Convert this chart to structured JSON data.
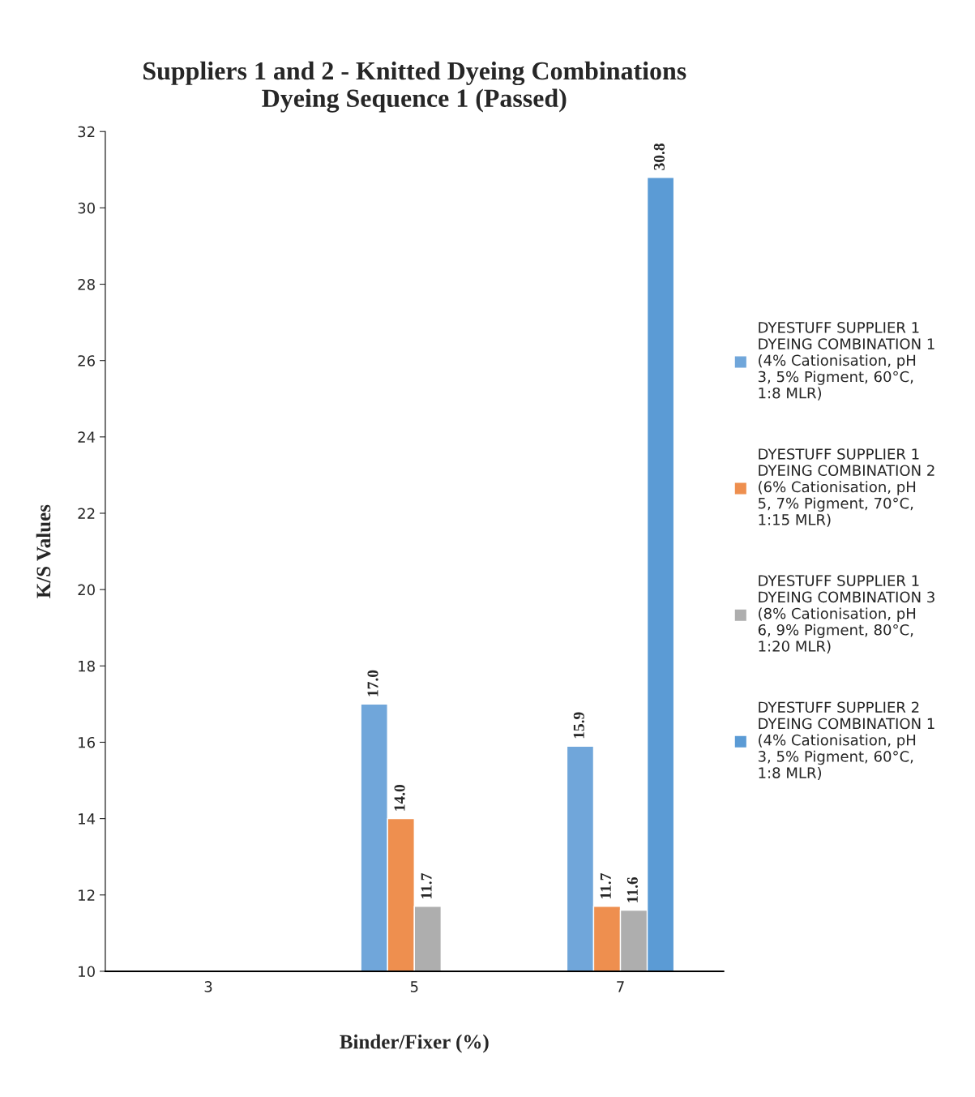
{
  "chart_data": {
    "type": "bar",
    "title": "Suppliers 1 and 2 - Knitted Dyeing Combinations\nDyeing Sequence 1 (Passed)",
    "xlabel": "Binder/Fixer (%)",
    "ylabel": "K/S Values",
    "categories": [
      "3",
      "5",
      "7"
    ],
    "series": [
      {
        "name": "DYESTUFF SUPPLIER 1 DYEING COMBINATION 1 (4% Cationisation, pH 3, 5% Pigment, 60°C, 1:8 MLR)",
        "color": "#70a6da",
        "values": [
          null,
          17.0,
          15.9
        ],
        "value_labels": [
          null,
          "17.0",
          "15.9"
        ]
      },
      {
        "name": "DYESTUFF SUPPLIER 1 DYEING COMBINATION 2 (6% Cationisation, pH 5, 7% Pigment, 70°C, 1:15 MLR)",
        "color": "#ee8f4f",
        "values": [
          null,
          14.0,
          11.7
        ],
        "value_labels": [
          null,
          "14.0",
          "11.7"
        ]
      },
      {
        "name": "DYESTUFF SUPPLIER 1 DYEING COMBINATION 3 (8% Cationisation, pH 6, 9% Pigment, 80°C, 1:20 MLR)",
        "color": "#aeaeae",
        "values": [
          null,
          11.7,
          11.6
        ],
        "value_labels": [
          null,
          "11.7",
          "11.6"
        ]
      },
      {
        "name": "DYESTUFF SUPPLIER 2 DYEING COMBINATION 1 (4% Cationisation, pH 3, 5% Pigment, 60°C, 1:8 MLR)",
        "color": "#5b9bd5",
        "values": [
          null,
          null,
          30.8
        ],
        "value_labels": [
          null,
          null,
          "30.8"
        ]
      }
    ],
    "ylim": [
      10,
      32
    ],
    "yticks": [
      10,
      12,
      14,
      16,
      18,
      20,
      22,
      24,
      26,
      28,
      30,
      32
    ],
    "grid": false,
    "legend": "right"
  }
}
